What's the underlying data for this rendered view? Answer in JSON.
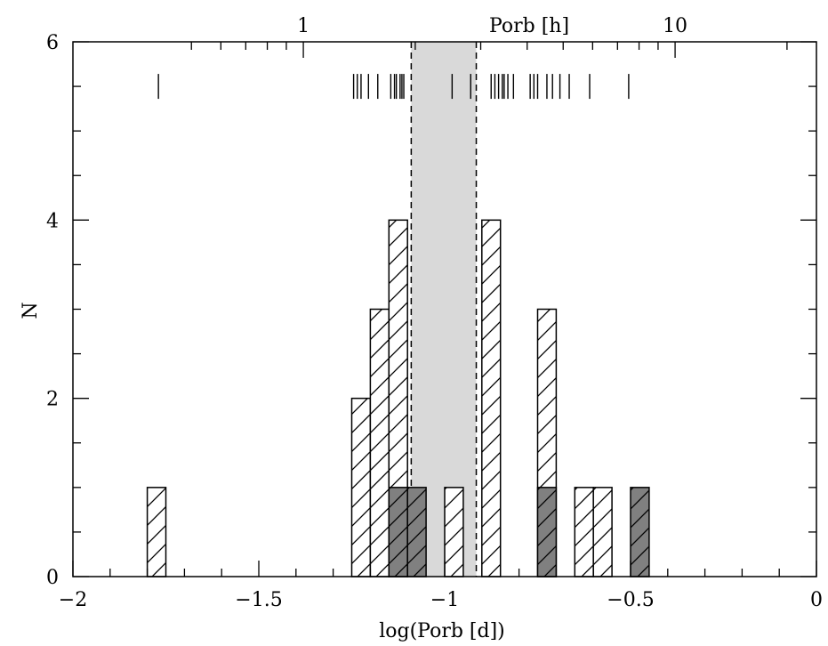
{
  "chart_data": {
    "type": "bar",
    "subtype": "histogram",
    "xlabel": "log(Porb [d])",
    "ylabel": "N",
    "top_axis_label": "Porb [h]",
    "xlim": [
      -2,
      0
    ],
    "ylim": [
      0,
      6
    ],
    "x_tick_labels": [
      "−2",
      "−1.5",
      "−1",
      "−0.5",
      "0"
    ],
    "x_tick_values": [
      -2,
      -1.5,
      -1,
      -0.5,
      0
    ],
    "y_tick_labels": [
      "0",
      "2",
      "4",
      "6"
    ],
    "y_tick_values": [
      0,
      2,
      4,
      6
    ],
    "top_tick_labels": [
      "1",
      "10"
    ],
    "top_tick_hours": [
      1,
      10
    ],
    "top_minor_hours": [
      0.5,
      0.6,
      0.7,
      0.8,
      0.9,
      2,
      3,
      4,
      5,
      6,
      7,
      8,
      9,
      20,
      30
    ],
    "bin_width": 0.05,
    "hatched_bins": [
      {
        "x0": -1.8,
        "count": 1
      },
      {
        "x0": -1.25,
        "count": 2
      },
      {
        "x0": -1.2,
        "count": 3
      },
      {
        "x0": -1.15,
        "count": 4
      },
      {
        "x0": -1.0,
        "count": 1
      },
      {
        "x0": -0.9,
        "count": 4
      },
      {
        "x0": -0.75,
        "count": 3
      },
      {
        "x0": -0.65,
        "count": 1
      },
      {
        "x0": -0.6,
        "count": 1
      }
    ],
    "filled_bins": [
      {
        "x0": -1.15,
        "count": 1
      },
      {
        "x0": -1.1,
        "count": 1
      },
      {
        "x0": -0.75,
        "count": 1
      },
      {
        "x0": -0.5,
        "count": 1
      }
    ],
    "period_gap": {
      "x_start": -1.09,
      "x_end": -0.915
    },
    "individual_periods": [
      -1.77,
      -1.245,
      -1.235,
      -1.225,
      -1.205,
      -1.18,
      -1.145,
      -1.135,
      -1.13,
      -1.12,
      -1.115,
      -1.11,
      -0.98,
      -0.93,
      -0.875,
      -0.865,
      -0.855,
      -0.845,
      -0.84,
      -0.83,
      -0.815,
      -0.77,
      -0.76,
      -0.75,
      -0.725,
      -0.71,
      -0.69,
      -0.665,
      -0.61,
      -0.505
    ],
    "tick_row_y": 5.5,
    "colors": {
      "gap_fill": "#d9d9d9",
      "filled_bar": "#808080",
      "hatched_bar_fill": "#ffffff",
      "line": "#000000"
    }
  }
}
